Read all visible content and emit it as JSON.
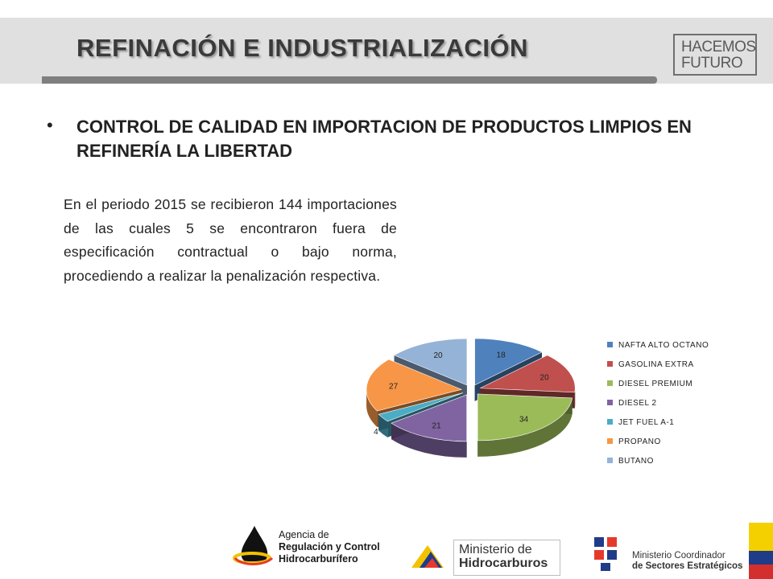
{
  "header": {
    "title": "REFINACIÓN E INDUSTRIALIZACIÓN",
    "brand_line1": "HACEMOS",
    "brand_line2": "FUTURO"
  },
  "content": {
    "bullet_heading": "CONTROL DE CALIDAD EN IMPORTACION DE PRODUCTOS LIMPIOS EN REFINERÍA LA LIBERTAD",
    "paragraph": "En el periodo 2015 se recibieron 144 importaciones de las cuales 5 se encontraron fuera de especificación contractual o bajo norma, procediendo a realizar la penalización respectiva."
  },
  "chart_data": {
    "type": "pie",
    "style": "3d-exploded",
    "title": "",
    "legend_position": "right",
    "categories": [
      "NAFTA ALTO OCTANO",
      "GASOLINA EXTRA",
      "DIESEL PREMIUM",
      "DIESEL 2",
      "JET FUEL A-1",
      "PROPANO",
      "BUTANO"
    ],
    "values": [
      18,
      20,
      34,
      21,
      4,
      27,
      20
    ],
    "colors": [
      "#4f81bd",
      "#c0504d",
      "#9bbb59",
      "#8064a2",
      "#4bacc6",
      "#f79646",
      "#95b3d7"
    ]
  },
  "footer": {
    "arch_line1": "Agencia de",
    "arch_line2": "Regulación y Control",
    "arch_line3": "Hidrocarburífero",
    "minh_line1": "Ministerio de",
    "minh_line2": "Hidrocarburos",
    "mcse_line1": "Ministerio Coordinador",
    "mcse_line2": "de Sectores Estratégicos"
  }
}
